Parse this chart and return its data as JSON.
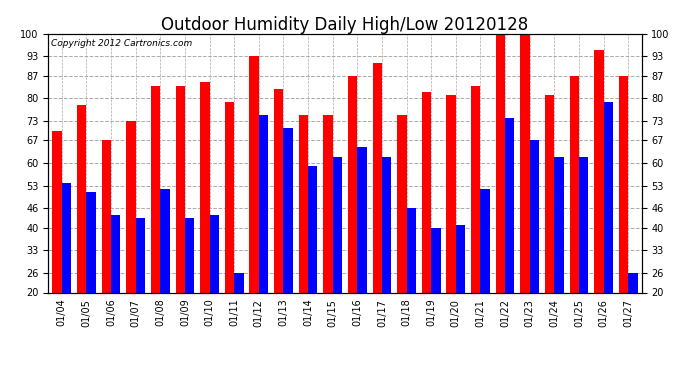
{
  "title": "Outdoor Humidity Daily High/Low 20120128",
  "copyright": "Copyright 2012 Cartronics.com",
  "dates": [
    "01/04",
    "01/05",
    "01/06",
    "01/07",
    "01/08",
    "01/09",
    "01/10",
    "01/11",
    "01/12",
    "01/13",
    "01/14",
    "01/15",
    "01/16",
    "01/17",
    "01/18",
    "01/19",
    "01/20",
    "01/21",
    "01/22",
    "01/23",
    "01/24",
    "01/25",
    "01/26",
    "01/27"
  ],
  "highs": [
    70,
    78,
    67,
    73,
    84,
    84,
    85,
    79,
    93,
    83,
    75,
    75,
    87,
    91,
    75,
    82,
    81,
    84,
    100,
    100,
    81,
    87,
    95,
    87
  ],
  "lows": [
    54,
    51,
    44,
    43,
    52,
    43,
    44,
    26,
    75,
    71,
    59,
    62,
    65,
    62,
    46,
    40,
    41,
    52,
    74,
    67,
    62,
    62,
    79,
    26
  ],
  "high_color": "#ff0000",
  "low_color": "#0000ff",
  "background_color": "#ffffff",
  "grid_color": "#aaaaaa",
  "ylim_min": 20,
  "ylim_max": 100,
  "yticks": [
    20,
    26,
    33,
    40,
    46,
    53,
    60,
    67,
    73,
    80,
    87,
    93,
    100
  ],
  "bar_width": 0.38,
  "title_fontsize": 12,
  "tick_fontsize": 7,
  "copyright_fontsize": 6.5
}
